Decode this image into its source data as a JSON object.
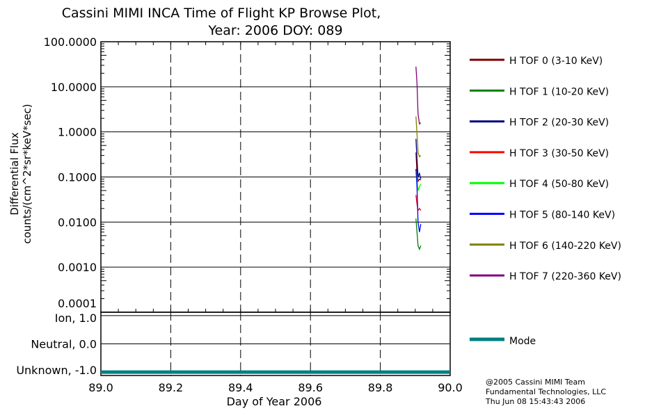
{
  "chart_data": [
    {
      "type": "line",
      "title": "Cassini MIMI INCA Time of Flight KP Browse Plot,",
      "subtitle": "Year: 2006 DOY: 089",
      "ylabel": [
        "Differential Flux",
        "counts/(cm^2*sr*keV*sec)"
      ],
      "yscale": "log",
      "ylim": [
        0.0001,
        100
      ],
      "ytick_labels": [
        "100.0000",
        "10.0000",
        "1.0000",
        "0.1000",
        "0.0100",
        "0.0010",
        "0.0001"
      ],
      "yticks": [
        100,
        10,
        1,
        0.1,
        0.01,
        0.001,
        0.0001
      ],
      "xlim": [
        89.0,
        90.0
      ],
      "xgrid": [
        89.2,
        89.4,
        89.6,
        89.8
      ],
      "grid": true,
      "legend": "right",
      "series": [
        {
          "name": "H TOF 0 (3-10 KeV)",
          "color": "#7f0000",
          "x": [
            89.902,
            89.905,
            89.908,
            89.912,
            89.916
          ],
          "y": [
            0.35,
            0.12,
            0.08,
            0.09,
            0.085
          ]
        },
        {
          "name": "H TOF 1 (10-20 KeV)",
          "color": "#007f00",
          "x": [
            89.902,
            89.905,
            89.908,
            89.912,
            89.916
          ],
          "y": [
            0.012,
            0.006,
            0.003,
            0.0025,
            0.003
          ]
        },
        {
          "name": "H TOF 2 (20-30 KeV)",
          "color": "#00007f",
          "x": [
            89.902,
            89.905,
            89.908,
            89.912,
            89.916
          ],
          "y": [
            0.7,
            0.25,
            0.1,
            0.12,
            0.09
          ]
        },
        {
          "name": "H TOF 3 (30-50 KeV)",
          "color": "#ff0000",
          "x": [
            89.902,
            89.905,
            89.908,
            89.912,
            89.916
          ],
          "y": [
            0.04,
            0.025,
            0.018,
            0.02,
            0.018
          ]
        },
        {
          "name": "H TOF 4 (50-80 KeV)",
          "color": "#00ff00",
          "x": [
            89.902,
            89.905,
            89.908,
            89.912,
            89.916
          ],
          "y": [
            0.15,
            0.09,
            0.05,
            0.06,
            0.07
          ]
        },
        {
          "name": "H TOF 5 (80-140 KeV)",
          "color": "#0000ff",
          "x": [
            89.902,
            89.905,
            89.908,
            89.912,
            89.916
          ],
          "y": [
            0.15,
            0.06,
            0.01,
            0.006,
            0.009
          ]
        },
        {
          "name": "H TOF 6 (140-220 KeV)",
          "color": "#7f7f00",
          "x": [
            89.902,
            89.905,
            89.908,
            89.912,
            89.916
          ],
          "y": [
            2.2,
            0.9,
            0.35,
            0.28,
            0.3
          ]
        },
        {
          "name": "H TOF 7 (220-360 KeV)",
          "color": "#7f007f",
          "x": [
            89.902,
            89.905,
            89.908,
            89.912,
            89.916
          ],
          "y": [
            28,
            12,
            2.5,
            1.5,
            1.6
          ]
        }
      ]
    },
    {
      "type": "line",
      "ylim": [
        -1.12,
        1.12
      ],
      "ytick_labels": [
        "Ion, 1.0",
        "Neutral, 0.0",
        "Unknown, -1.0"
      ],
      "yticks": [
        1,
        0,
        -1
      ],
      "xlim": [
        89.0,
        90.0
      ],
      "xtick_labels": [
        "89.0",
        "89.2",
        "89.4",
        "89.6",
        "89.8",
        "90.0"
      ],
      "xticks": [
        89.0,
        89.2,
        89.4,
        89.6,
        89.8,
        90.0
      ],
      "xlabel": "Day of Year 2006",
      "series": [
        {
          "name": "Mode",
          "color": "#007f7f",
          "x": [
            89.0,
            90.0
          ],
          "y": [
            -1,
            -1
          ]
        }
      ]
    }
  ],
  "credits": [
    "@2005 Cassini MIMI Team",
    "Fundamental Technologies, LLC",
    "Thu Jun 08 15:43:43 2006"
  ]
}
